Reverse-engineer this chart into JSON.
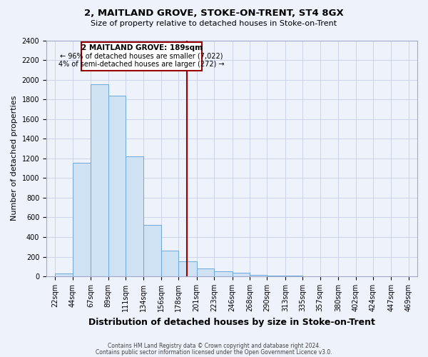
{
  "title": "2, MAITLAND GROVE, STOKE-ON-TRENT, ST4 8GX",
  "subtitle": "Size of property relative to detached houses in Stoke-on-Trent",
  "xlabel": "Distribution of detached houses by size in Stoke-on-Trent",
  "ylabel": "Number of detached properties",
  "bin_edges": [
    22,
    44,
    67,
    89,
    111,
    134,
    156,
    178,
    201,
    223,
    246,
    268,
    290,
    313,
    335,
    357,
    380,
    402,
    424,
    447,
    469
  ],
  "bin_counts": [
    30,
    1155,
    1950,
    1840,
    1220,
    520,
    265,
    150,
    80,
    50,
    40,
    15,
    10,
    5,
    3,
    2,
    1,
    1,
    0,
    1
  ],
  "bar_facecolor": "#cfe2f3",
  "bar_edgecolor": "#6fa8dc",
  "vline_x": 189,
  "vline_color": "#990000",
  "annotation_title": "2 MAITLAND GROVE: 189sqm",
  "annotation_line1": "← 96% of detached houses are smaller (7,022)",
  "annotation_line2": "4% of semi-detached houses are larger (272) →",
  "annotation_box_edgecolor": "#990000",
  "annotation_box_facecolor": "#ffffff",
  "ylim": [
    0,
    2400
  ],
  "yticks": [
    0,
    200,
    400,
    600,
    800,
    1000,
    1200,
    1400,
    1600,
    1800,
    2000,
    2200,
    2400
  ],
  "footer_line1": "Contains HM Land Registry data © Crown copyright and database right 2024.",
  "footer_line2": "Contains public sector information licensed under the Open Government Licence v3.0.",
  "background_color": "#eef2fb",
  "grid_color": "#c8d0e8",
  "tick_fontsize": 7,
  "ylabel_fontsize": 8,
  "xlabel_fontsize": 9
}
